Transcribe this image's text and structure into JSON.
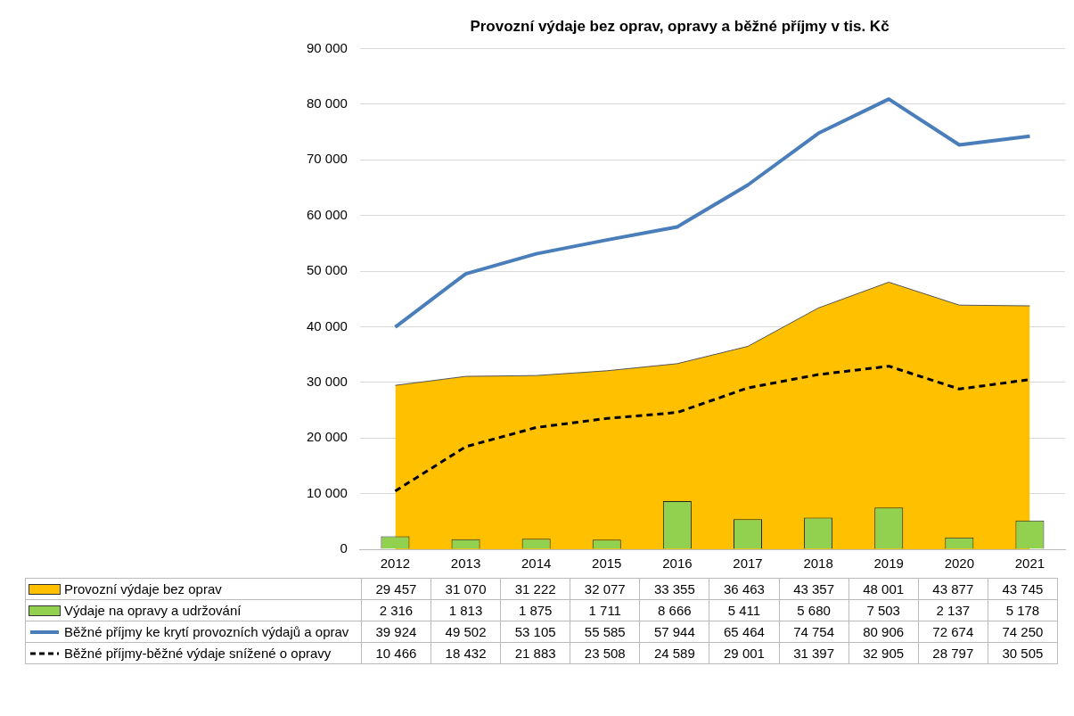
{
  "chart_data": {
    "type": "bar",
    "title": "Provozní výdaje bez oprav, opravy a běžné příjmy v tis. Kč",
    "categories": [
      "2012",
      "2013",
      "2014",
      "2015",
      "2016",
      "2017",
      "2018",
      "2019",
      "2020",
      "2021"
    ],
    "series": [
      {
        "name": "Provozní výdaje bez oprav",
        "type": "area",
        "color": "#ffc000",
        "values": [
          29457,
          31070,
          31222,
          32077,
          33355,
          36463,
          43357,
          48001,
          43877,
          43745
        ]
      },
      {
        "name": "Výdaje na opravy a udržování",
        "color": "#92d050",
        "values": [
          2316,
          1813,
          1875,
          1711,
          8666,
          5411,
          5680,
          7503,
          2137,
          5178
        ]
      },
      {
        "name": "Běžné příjmy ke krytí provozních výdajů a oprav",
        "type": "line",
        "color": "#4a7ebb",
        "line_style": "solid",
        "values": [
          39924,
          49502,
          53105,
          55585,
          57944,
          65464,
          74754,
          80906,
          72674,
          74250
        ]
      },
      {
        "name": "Běžné příjmy-běžné výdaje snížené o opravy",
        "type": "line",
        "color": "#000000",
        "line_style": "dashed",
        "values": [
          10466,
          18432,
          21883,
          23508,
          24589,
          29001,
          31397,
          32905,
          28797,
          30505
        ]
      }
    ],
    "ylim": [
      0,
      90000
    ],
    "yticks": [
      0,
      10000,
      20000,
      30000,
      40000,
      50000,
      60000,
      70000,
      80000,
      90000
    ],
    "grid": "y",
    "legend": "bottom",
    "data_labels": true,
    "marker": "none"
  }
}
